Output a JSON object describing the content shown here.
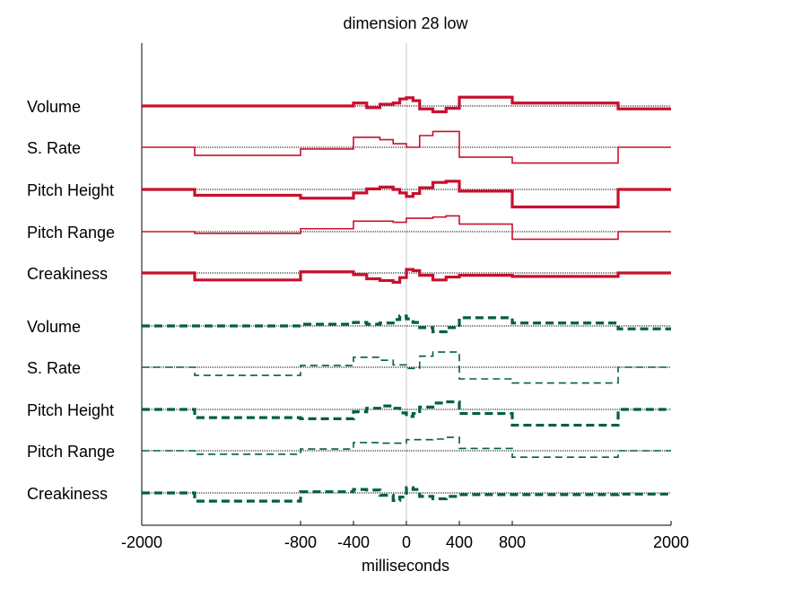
{
  "chart_data": {
    "type": "line",
    "title": "dimension 28 low",
    "xlabel": "milliseconds",
    "ylabel": "",
    "xlim": [
      -2000,
      2000
    ],
    "x_ticks": [
      -2000,
      -800,
      -400,
      0,
      400,
      800,
      2000
    ],
    "x_tick_labels": [
      "-2000",
      "-800",
      "-400",
      "0",
      "400",
      "800",
      "2000"
    ],
    "grid": false,
    "zero_line": 0,
    "colors": {
      "top": "#c8102e",
      "bottom": "#006040",
      "baseline": "#000000",
      "zero_line": "#c8c8c8"
    },
    "groups": [
      {
        "color": "#c8102e",
        "dash": "solid",
        "series": [
          {
            "name": "Volume",
            "width": "thick",
            "steps": [
              [
                -2000,
                0
              ],
              [
                -800,
                0
              ],
              [
                -400,
                0.5
              ],
              [
                -300,
                -0.3
              ],
              [
                -200,
                0.3
              ],
              [
                -100,
                0.5
              ],
              [
                -50,
                1.2
              ],
              [
                0,
                1.4
              ],
              [
                50,
                0.9
              ],
              [
                100,
                -0.5
              ],
              [
                200,
                -1.0
              ],
              [
                300,
                -0.4
              ],
              [
                400,
                1.5
              ],
              [
                800,
                0.5
              ],
              [
                1600,
                -0.5
              ],
              [
                2000,
                -0.5
              ]
            ]
          },
          {
            "name": "S. Rate",
            "width": "thin",
            "steps": [
              [
                -2000,
                0
              ],
              [
                -1600,
                -1.4
              ],
              [
                -800,
                -0.3
              ],
              [
                -400,
                1.7
              ],
              [
                -200,
                1.3
              ],
              [
                -100,
                0.6
              ],
              [
                0,
                0
              ],
              [
                100,
                2.0
              ],
              [
                200,
                2.7
              ],
              [
                400,
                -1.7
              ],
              [
                800,
                -2.7
              ],
              [
                1600,
                0
              ],
              [
                2000,
                0
              ]
            ]
          },
          {
            "name": "Pitch Height",
            "width": "thick",
            "steps": [
              [
                -2000,
                0
              ],
              [
                -1600,
                -1.0
              ],
              [
                -800,
                -1.5
              ],
              [
                -400,
                -0.6
              ],
              [
                -300,
                0.1
              ],
              [
                -200,
                0.4
              ],
              [
                -100,
                0.0
              ],
              [
                -50,
                -0.6
              ],
              [
                0,
                -1.2
              ],
              [
                50,
                -0.7
              ],
              [
                100,
                0.3
              ],
              [
                200,
                1.2
              ],
              [
                300,
                1.4
              ],
              [
                400,
                -0.3
              ],
              [
                800,
                -3.0
              ],
              [
                1600,
                0
              ],
              [
                2000,
                0
              ]
            ]
          },
          {
            "name": "Pitch Range",
            "width": "thin",
            "steps": [
              [
                -2000,
                0
              ],
              [
                -1600,
                -0.3
              ],
              [
                -800,
                0.5
              ],
              [
                -400,
                1.8
              ],
              [
                -100,
                1.6
              ],
              [
                0,
                2.3
              ],
              [
                200,
                2.5
              ],
              [
                300,
                2.7
              ],
              [
                400,
                1.3
              ],
              [
                800,
                -1.3
              ],
              [
                1600,
                0
              ],
              [
                2000,
                0
              ]
            ]
          },
          {
            "name": "Creakiness",
            "width": "thick",
            "steps": [
              [
                -2000,
                0
              ],
              [
                -1600,
                -1.2
              ],
              [
                -800,
                0.2
              ],
              [
                -400,
                -0.3
              ],
              [
                -300,
                -1.0
              ],
              [
                -200,
                -1.3
              ],
              [
                -100,
                -1.6
              ],
              [
                -50,
                -0.8
              ],
              [
                0,
                0.6
              ],
              [
                50,
                0.4
              ],
              [
                100,
                -0.4
              ],
              [
                200,
                -1.2
              ],
              [
                300,
                -0.7
              ],
              [
                400,
                -0.4
              ],
              [
                800,
                -0.6
              ],
              [
                1600,
                0
              ],
              [
                2000,
                0
              ]
            ]
          }
        ]
      },
      {
        "color": "#006040",
        "dash": "dashed",
        "series": [
          {
            "name": "Volume",
            "width": "thick",
            "steps": [
              [
                -2000,
                0
              ],
              [
                -800,
                0.3
              ],
              [
                -400,
                0.6
              ],
              [
                -300,
                0.3
              ],
              [
                -200,
                0.5
              ],
              [
                -100,
                1.1
              ],
              [
                -50,
                1.7
              ],
              [
                0,
                1.2
              ],
              [
                50,
                0.6
              ],
              [
                100,
                -0.3
              ],
              [
                200,
                -1.0
              ],
              [
                300,
                -0.3
              ],
              [
                400,
                1.4
              ],
              [
                800,
                0.5
              ],
              [
                1600,
                -0.5
              ],
              [
                2000,
                -0.5
              ]
            ]
          },
          {
            "name": "S. Rate",
            "width": "thin",
            "steps": [
              [
                -2000,
                0
              ],
              [
                -1600,
                -1.4
              ],
              [
                -800,
                0.3
              ],
              [
                -400,
                1.7
              ],
              [
                -200,
                1.2
              ],
              [
                -100,
                0.4
              ],
              [
                0,
                -0.2
              ],
              [
                100,
                1.9
              ],
              [
                200,
                2.6
              ],
              [
                400,
                -2.0
              ],
              [
                800,
                -2.7
              ],
              [
                1600,
                0
              ],
              [
                2000,
                0
              ]
            ]
          },
          {
            "name": "Pitch Height",
            "width": "thick",
            "steps": [
              [
                -2000,
                0
              ],
              [
                -1600,
                -1.4
              ],
              [
                -800,
                -1.6
              ],
              [
                -400,
                -0.4
              ],
              [
                -300,
                0.2
              ],
              [
                -200,
                0.6
              ],
              [
                -100,
                0.2
              ],
              [
                -50,
                -0.6
              ],
              [
                0,
                -1.2
              ],
              [
                50,
                -0.7
              ],
              [
                100,
                0.4
              ],
              [
                200,
                1.1
              ],
              [
                300,
                1.3
              ],
              [
                400,
                -0.7
              ],
              [
                800,
                -2.7
              ],
              [
                1600,
                0
              ],
              [
                2000,
                0
              ]
            ]
          },
          {
            "name": "Pitch Range",
            "width": "thin",
            "steps": [
              [
                -2000,
                0
              ],
              [
                -1600,
                -0.6
              ],
              [
                -800,
                0.3
              ],
              [
                -400,
                1.4
              ],
              [
                -200,
                1.3
              ],
              [
                0,
                1.9
              ],
              [
                200,
                2.0
              ],
              [
                300,
                2.3
              ],
              [
                400,
                0.4
              ],
              [
                800,
                -1.1
              ],
              [
                1600,
                0
              ],
              [
                2000,
                0
              ]
            ]
          },
          {
            "name": "Creakiness",
            "width": "thick",
            "steps": [
              [
                -2000,
                0
              ],
              [
                -1600,
                -1.4
              ],
              [
                -800,
                0.2
              ],
              [
                -400,
                0.6
              ],
              [
                -300,
                0.5
              ],
              [
                -200,
                -0.4
              ],
              [
                -100,
                -1.3
              ],
              [
                -50,
                -0.7
              ],
              [
                0,
                0.9
              ],
              [
                50,
                0.6
              ],
              [
                100,
                -0.6
              ],
              [
                200,
                -1.0
              ],
              [
                300,
                -0.6
              ],
              [
                400,
                -0.3
              ],
              [
                800,
                -0.3
              ],
              [
                1600,
                -0.2
              ],
              [
                2000,
                0
              ]
            ]
          }
        ]
      }
    ]
  }
}
